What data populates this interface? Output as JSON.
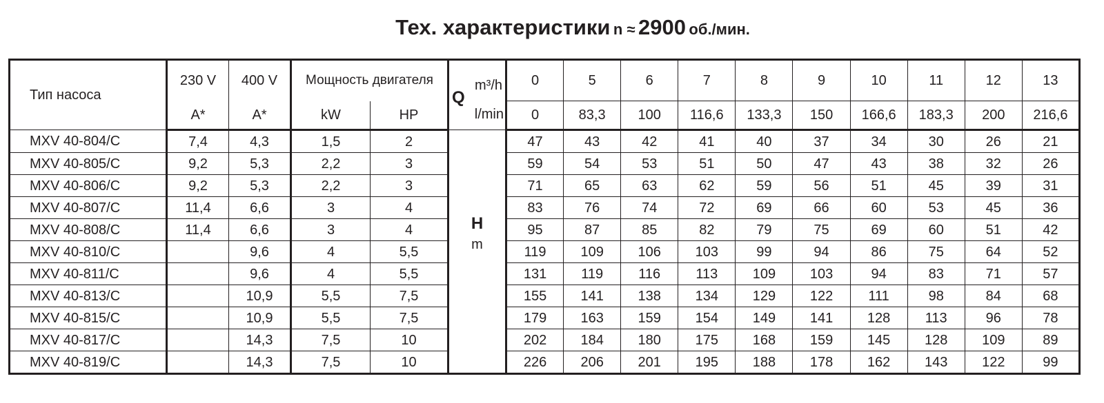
{
  "title": {
    "main": "Тех. характеристики",
    "n_label": "n ≈",
    "speed": "2900",
    "unit": "об./мин."
  },
  "header": {
    "pump_type": "Тип насоса",
    "v230": "230 V",
    "v400": "400 V",
    "amp230": "A*",
    "amp400": "A*",
    "power": "Мощность двигателя",
    "kw": "kW",
    "hp": "HP",
    "q": "Q",
    "q_unit_m3h": "m³/h",
    "q_unit_lmin": "l/min",
    "h": "H",
    "h_unit": "m",
    "flow_m3h": [
      "0",
      "5",
      "6",
      "7",
      "8",
      "9",
      "10",
      "11",
      "12",
      "13"
    ],
    "flow_lmin": [
      "0",
      "83,3",
      "100",
      "116,6",
      "133,3",
      "150",
      "166,6",
      "183,3",
      "200",
      "216,6"
    ]
  },
  "rows": [
    {
      "model": "MXV 40-804/C",
      "a230": "7,4",
      "a400": "4,3",
      "kw": "1,5",
      "hp": "2",
      "h": [
        "47",
        "43",
        "42",
        "41",
        "40",
        "37",
        "34",
        "30",
        "26",
        "21"
      ]
    },
    {
      "model": "MXV 40-805/C",
      "a230": "9,2",
      "a400": "5,3",
      "kw": "2,2",
      "hp": "3",
      "h": [
        "59",
        "54",
        "53",
        "51",
        "50",
        "47",
        "43",
        "38",
        "32",
        "26"
      ]
    },
    {
      "model": "MXV 40-806/C",
      "a230": "9,2",
      "a400": "5,3",
      "kw": "2,2",
      "hp": "3",
      "h": [
        "71",
        "65",
        "63",
        "62",
        "59",
        "56",
        "51",
        "45",
        "39",
        "31"
      ]
    },
    {
      "model": "MXV 40-807/C",
      "a230": "11,4",
      "a400": "6,6",
      "kw": "3",
      "hp": "4",
      "h": [
        "83",
        "76",
        "74",
        "72",
        "69",
        "66",
        "60",
        "53",
        "45",
        "36"
      ]
    },
    {
      "model": "MXV 40-808/C",
      "a230": "11,4",
      "a400": "6,6",
      "kw": "3",
      "hp": "4",
      "h": [
        "95",
        "87",
        "85",
        "82",
        "79",
        "75",
        "69",
        "60",
        "51",
        "42"
      ]
    },
    {
      "model": "MXV 40-810/C",
      "a230": "",
      "a400": "9,6",
      "kw": "4",
      "hp": "5,5",
      "h": [
        "119",
        "109",
        "106",
        "103",
        "99",
        "94",
        "86",
        "75",
        "64",
        "52"
      ]
    },
    {
      "model": "MXV 40-811/C",
      "a230": "",
      "a400": "9,6",
      "kw": "4",
      "hp": "5,5",
      "h": [
        "131",
        "119",
        "116",
        "113",
        "109",
        "103",
        "94",
        "83",
        "71",
        "57"
      ]
    },
    {
      "model": "MXV 40-813/C",
      "a230": "",
      "a400": "10,9",
      "kw": "5,5",
      "hp": "7,5",
      "h": [
        "155",
        "141",
        "138",
        "134",
        "129",
        "122",
        "111",
        "98",
        "84",
        "68"
      ]
    },
    {
      "model": "MXV 40-815/C",
      "a230": "",
      "a400": "10,9",
      "kw": "5,5",
      "hp": "7,5",
      "h": [
        "179",
        "163",
        "159",
        "154",
        "149",
        "141",
        "128",
        "113",
        "96",
        "78"
      ]
    },
    {
      "model": "MXV 40-817/C",
      "a230": "",
      "a400": "14,3",
      "kw": "7,5",
      "hp": "10",
      "h": [
        "202",
        "184",
        "180",
        "175",
        "168",
        "159",
        "145",
        "128",
        "109",
        "89"
      ]
    },
    {
      "model": "MXV 40-819/C",
      "a230": "",
      "a400": "14,3",
      "kw": "7,5",
      "hp": "10",
      "h": [
        "226",
        "206",
        "201",
        "195",
        "188",
        "178",
        "162",
        "143",
        "122",
        "99"
      ]
    }
  ]
}
